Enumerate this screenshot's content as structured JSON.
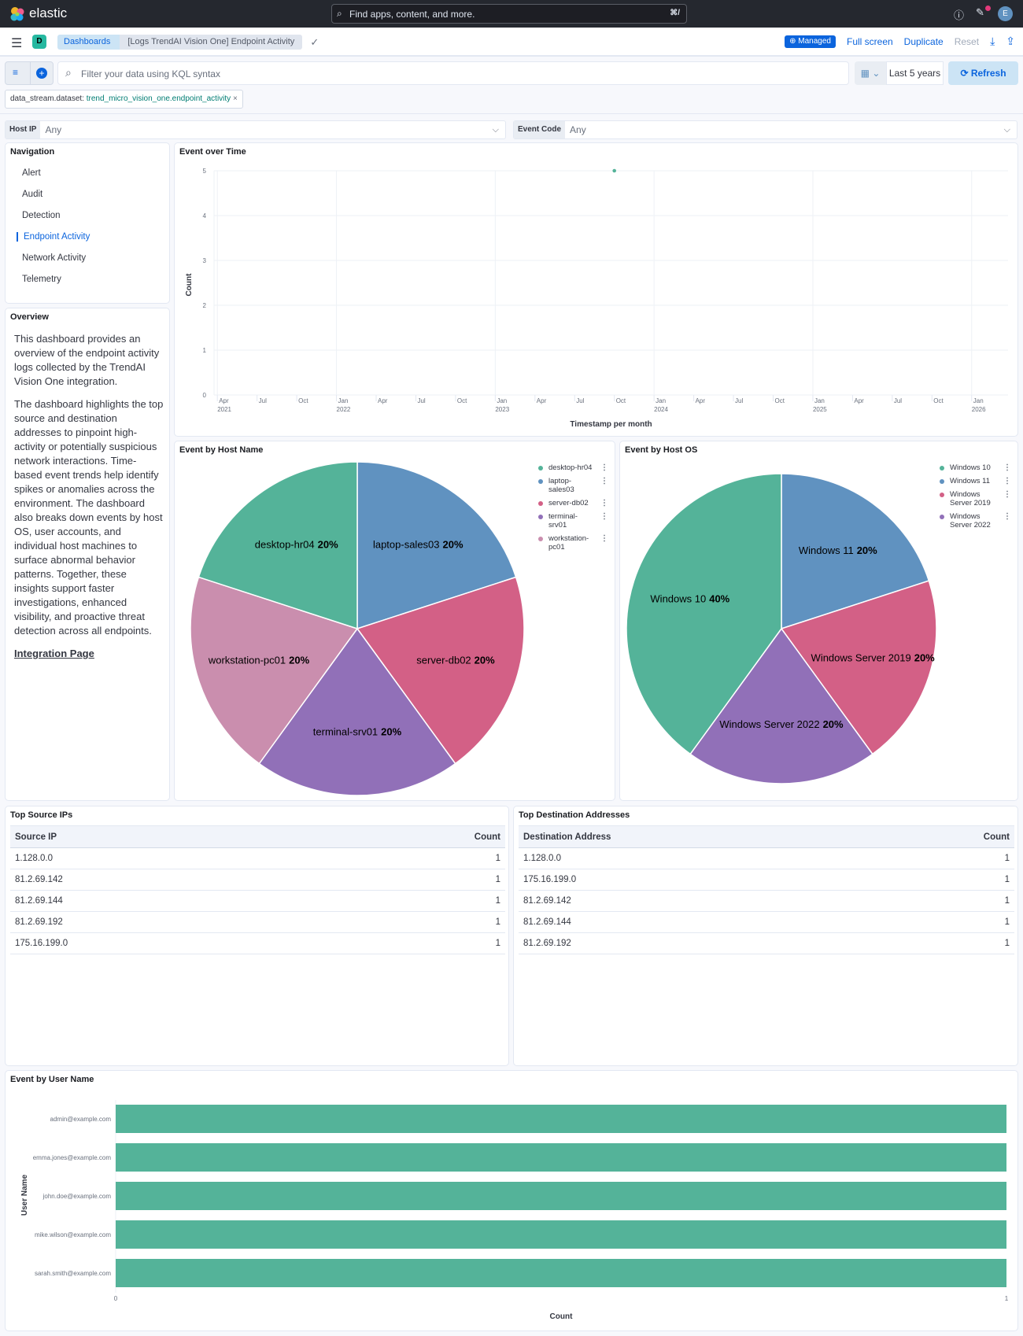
{
  "header": {
    "logo_text": "elastic",
    "search_placeholder": "Find apps, content, and more.",
    "search_shortcut": "⌘/",
    "avatar": "E",
    "help_icon": "help-icon",
    "news_icon": "newsfeed-icon"
  },
  "toolbar": {
    "space": "D",
    "breadcrumbs": [
      "Dashboards",
      "[Logs TrendAI Vision One] Endpoint Activity"
    ],
    "managed": "Managed",
    "full_screen": "Full screen",
    "duplicate": "Duplicate",
    "reset": "Reset"
  },
  "query": {
    "placeholder": "Filter your data using KQL syntax",
    "time": "Last 5 years",
    "refresh": "Refresh"
  },
  "filter_pill": {
    "field": "data_stream.dataset:",
    "value": "trend_micro_vision_one.endpoint_activity"
  },
  "controls": [
    {
      "label": "Host IP",
      "value": "Any"
    },
    {
      "label": "Event Code",
      "value": "Any"
    }
  ],
  "navigation": {
    "title": "Navigation",
    "items": [
      "Alert",
      "Audit",
      "Detection",
      "Endpoint Activity",
      "Network Activity",
      "Telemetry"
    ],
    "active": "Endpoint Activity"
  },
  "overview": {
    "title": "Overview",
    "paragraphs": [
      "This dashboard provides an overview of the endpoint activity logs collected by the TrendAI Vision One integration.",
      "The dashboard highlights the top source and destination addresses to pinpoint high-activity or potentially suspicious network interactions. Time-based event trends help identify spikes or anomalies across the environment. The dashboard also breaks down events by host OS, user accounts, and individual host machines to surface abnormal behavior patterns. Together, these insights support faster investigations, enhanced visibility, and proactive threat detection across all endpoints."
    ],
    "link": "Integration Page"
  },
  "colors": {
    "green": "#54B399",
    "blue": "#6092C0",
    "red": "#D36086",
    "purple": "#9170B8",
    "pink": "#CA8EAE",
    "accent": "#0B64DD"
  },
  "chart_data": [
    {
      "type": "scatter",
      "title": "Event over Time",
      "xlabel": "Timestamp per month",
      "ylabel": "Count",
      "ylim": [
        0,
        5
      ],
      "yticks": [
        0,
        1,
        2,
        3,
        4,
        5
      ],
      "xlim": [
        "2021-03",
        "2026-03"
      ],
      "xticks": [
        {
          "d": "2021-04",
          "l": "Apr",
          "y": "2021"
        },
        {
          "d": "2021-07",
          "l": "Jul"
        },
        {
          "d": "2021-10",
          "l": "Oct"
        },
        {
          "d": "2022-01",
          "l": "Jan",
          "y": "2022"
        },
        {
          "d": "2022-04",
          "l": "Apr"
        },
        {
          "d": "2022-07",
          "l": "Jul"
        },
        {
          "d": "2022-10",
          "l": "Oct"
        },
        {
          "d": "2023-01",
          "l": "Jan",
          "y": "2023"
        },
        {
          "d": "2023-04",
          "l": "Apr"
        },
        {
          "d": "2023-07",
          "l": "Jul"
        },
        {
          "d": "2023-10",
          "l": "Oct"
        },
        {
          "d": "2024-01",
          "l": "Jan",
          "y": "2024"
        },
        {
          "d": "2024-04",
          "l": "Apr"
        },
        {
          "d": "2024-07",
          "l": "Jul"
        },
        {
          "d": "2024-10",
          "l": "Oct"
        },
        {
          "d": "2025-01",
          "l": "Jan",
          "y": "2025"
        },
        {
          "d": "2025-04",
          "l": "Apr"
        },
        {
          "d": "2025-07",
          "l": "Jul"
        },
        {
          "d": "2025-10",
          "l": "Oct"
        },
        {
          "d": "2026-01",
          "l": "Jan",
          "y": "2026"
        }
      ],
      "points": [
        {
          "x": "2023-10",
          "y": 5
        }
      ],
      "grid": true
    },
    {
      "type": "pie",
      "title": "Event by Host Name",
      "legend": "top-right",
      "slices": [
        {
          "label": "laptop-sales03",
          "value": 20,
          "color": "#6092C0"
        },
        {
          "label": "server-db02",
          "value": 20,
          "color": "#D36086"
        },
        {
          "label": "terminal-srv01",
          "value": 20,
          "color": "#9170B8"
        },
        {
          "label": "workstation-pc01",
          "value": 20,
          "color": "#CA8EAE"
        },
        {
          "label": "desktop-hr04",
          "value": 20,
          "color": "#54B399"
        }
      ],
      "legend_entries": [
        {
          "label": "desktop-hr04",
          "color": "#54B399"
        },
        {
          "label": "laptop-sales03",
          "color": "#6092C0"
        },
        {
          "label": "server-db02",
          "color": "#D36086"
        },
        {
          "label": "terminal-srv01",
          "color": "#9170B8"
        },
        {
          "label": "workstation-pc01",
          "color": "#CA8EAE"
        }
      ]
    },
    {
      "type": "pie",
      "title": "Event by Host OS",
      "legend": "top-right",
      "slices": [
        {
          "label": "Windows 11",
          "value": 20,
          "color": "#6092C0"
        },
        {
          "label": "Windows Server 2019",
          "value": 20,
          "color": "#D36086"
        },
        {
          "label": "Windows Server 2022",
          "value": 20,
          "color": "#9170B8"
        },
        {
          "label": "Windows 10",
          "value": 40,
          "color": "#54B399"
        }
      ],
      "legend_entries": [
        {
          "label": "Windows 10",
          "color": "#54B399"
        },
        {
          "label": "Windows 11",
          "color": "#6092C0"
        },
        {
          "label": "Windows Server 2019",
          "color": "#D36086"
        },
        {
          "label": "Windows Server 2022",
          "color": "#9170B8"
        }
      ]
    },
    {
      "type": "table",
      "title": "Top Source IPs",
      "columns": [
        "Source IP",
        "Count"
      ],
      "rows": [
        [
          "1.128.0.0",
          "1"
        ],
        [
          "81.2.69.142",
          "1"
        ],
        [
          "81.2.69.144",
          "1"
        ],
        [
          "81.2.69.192",
          "1"
        ],
        [
          "175.16.199.0",
          "1"
        ]
      ]
    },
    {
      "type": "table",
      "title": "Top Destination Addresses",
      "columns": [
        "Destination Address",
        "Count"
      ],
      "rows": [
        [
          "1.128.0.0",
          "1"
        ],
        [
          "175.16.199.0",
          "1"
        ],
        [
          "81.2.69.142",
          "1"
        ],
        [
          "81.2.69.144",
          "1"
        ],
        [
          "81.2.69.192",
          "1"
        ]
      ]
    },
    {
      "type": "bar",
      "orientation": "horizontal",
      "title": "Event by User Name",
      "xlabel": "Count",
      "ylabel": "User Name",
      "xlim": [
        0,
        1
      ],
      "xticks": [
        0,
        1
      ],
      "categories": [
        "admin@example.com",
        "emma.jones@example.com",
        "john.doe@example.com",
        "mike.wilson@example.com",
        "sarah.smith@example.com"
      ],
      "values": [
        1,
        1,
        1,
        1,
        1
      ],
      "color": "#54B399"
    }
  ]
}
